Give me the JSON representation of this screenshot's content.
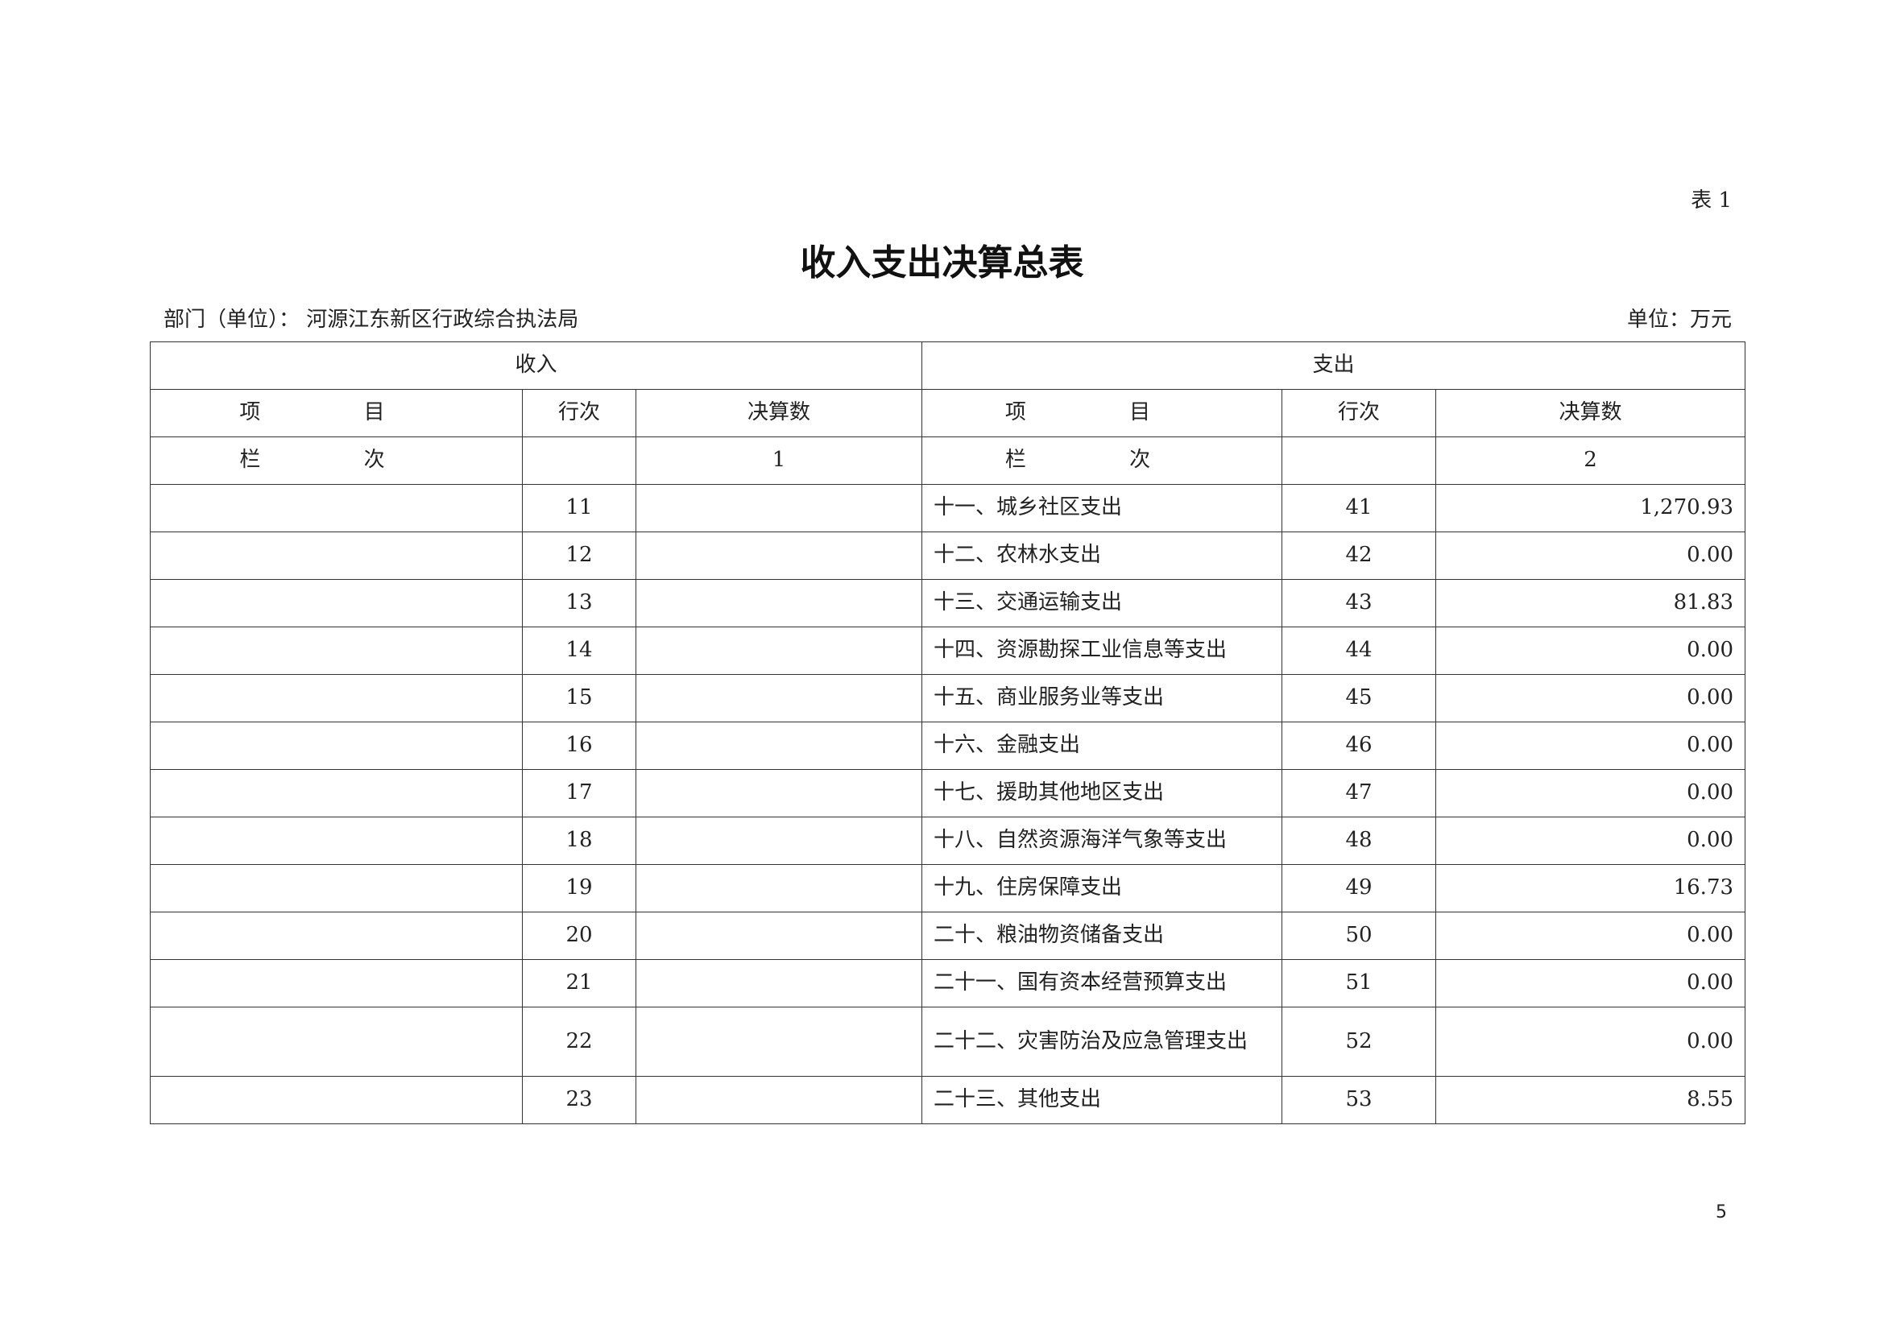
{
  "table_no": "表 1",
  "title": "收入支出决算总表",
  "department": "部门（单位）：  河源江东新区行政综合执法局",
  "unit": "单位：万元",
  "page_number": "5",
  "headers": {
    "income": "收入",
    "expense": "支出",
    "item": "项 目",
    "row_no": "行次",
    "amount": "决算数",
    "column_label": "栏 次",
    "income_col_no": "1",
    "expense_col_no": "2"
  },
  "rows": [
    {
      "income_row": "11",
      "expense_item": "十一、城乡社区支出",
      "expense_row": "41",
      "expense_amount": "1,270.93"
    },
    {
      "income_row": "12",
      "expense_item": "十二、农林水支出",
      "expense_row": "42",
      "expense_amount": "0.00"
    },
    {
      "income_row": "13",
      "expense_item": "十三、交通运输支出",
      "expense_row": "43",
      "expense_amount": "81.83"
    },
    {
      "income_row": "14",
      "expense_item": "十四、资源勘探工业信息等支出",
      "expense_row": "44",
      "expense_amount": "0.00"
    },
    {
      "income_row": "15",
      "expense_item": "十五、商业服务业等支出",
      "expense_row": "45",
      "expense_amount": "0.00"
    },
    {
      "income_row": "16",
      "expense_item": "十六、金融支出",
      "expense_row": "46",
      "expense_amount": "0.00"
    },
    {
      "income_row": "17",
      "expense_item": "十七、援助其他地区支出",
      "expense_row": "47",
      "expense_amount": "0.00"
    },
    {
      "income_row": "18",
      "expense_item": "十八、自然资源海洋气象等支出",
      "expense_row": "48",
      "expense_amount": "0.00"
    },
    {
      "income_row": "19",
      "expense_item": "十九、住房保障支出",
      "expense_row": "49",
      "expense_amount": "16.73"
    },
    {
      "income_row": "20",
      "expense_item": "二十、粮油物资储备支出",
      "expense_row": "50",
      "expense_amount": "0.00"
    },
    {
      "income_row": "21",
      "expense_item": "二十一、国有资本经营预算支出",
      "expense_row": "51",
      "expense_amount": "0.00"
    },
    {
      "income_row": "22",
      "expense_item": "二十二、灾害防治及应急管理支出",
      "expense_row": "52",
      "expense_amount": "0.00"
    },
    {
      "income_row": "23",
      "expense_item": "二十三、其他支出",
      "expense_row": "53",
      "expense_amount": "8.55"
    }
  ]
}
